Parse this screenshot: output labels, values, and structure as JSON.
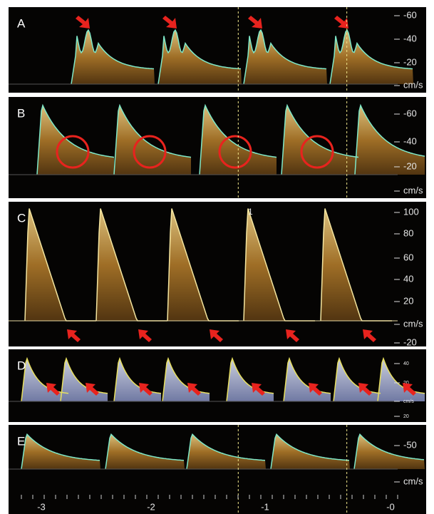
{
  "panels": [
    {
      "label": "A",
      "scale": [
        "-60",
        "-40",
        "-20",
        "cm/s"
      ]
    },
    {
      "label": "B",
      "scale": [
        "-60",
        "-40",
        "-20",
        "cm/s"
      ]
    },
    {
      "label": "C",
      "scale": [
        "100",
        "80",
        "60",
        "40",
        "20",
        "cm/s",
        "-20"
      ],
      "marker": "1"
    },
    {
      "label": "D",
      "scale": [
        "40",
        "20",
        "cm/s",
        "20"
      ]
    },
    {
      "label": "E",
      "scale": [
        "-50",
        "cm/s"
      ],
      "time_axis": [
        "-3",
        "-2",
        "-1",
        "-0"
      ]
    }
  ]
}
